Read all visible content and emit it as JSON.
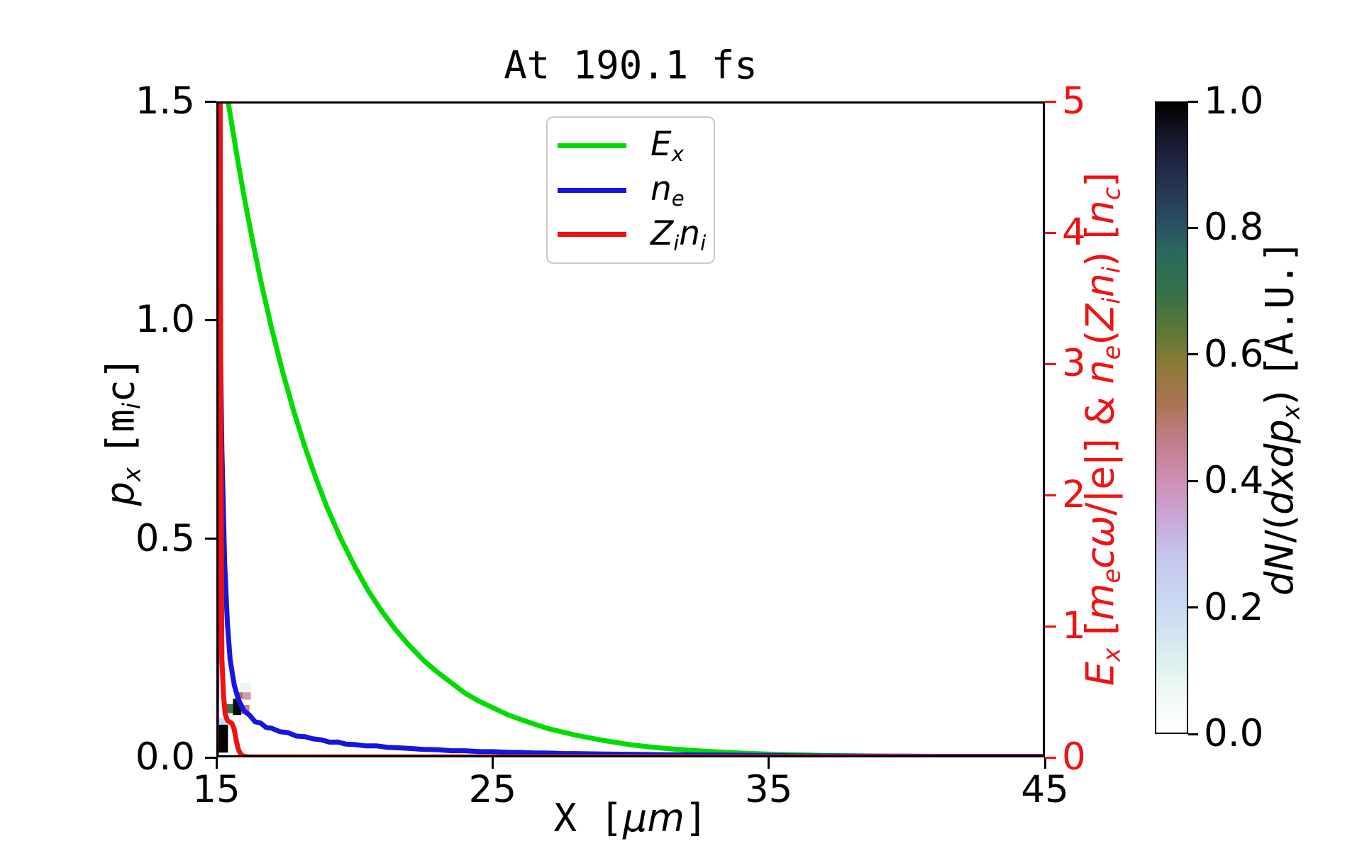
{
  "figure": {
    "kind": "simulation-diagnostic-plot"
  },
  "chart_data": {
    "type": "line+heatmap",
    "title": "At 190.1 fs",
    "xlabel": [
      {
        "t": "X [",
        "mono": 1
      },
      {
        "t": "μm",
        "it": 1
      },
      {
        "t": "]",
        "mono": 1
      }
    ],
    "x_range": [
      15,
      45
    ],
    "x_ticks": [
      "15",
      "25",
      "35",
      "45"
    ],
    "left_axis": {
      "label": [
        {
          "t": "p",
          "it": 1
        },
        {
          "t": "x",
          "sub": 1
        },
        {
          "t": " "
        },
        {
          "t": "[m",
          "mono": 1
        },
        {
          "t": "i",
          "sub": 1
        },
        {
          "t": "c]",
          "mono": 1
        }
      ],
      "range": [
        0,
        1.5
      ],
      "ticks": [
        "0.0",
        "0.5",
        "1.0",
        "1.5"
      ],
      "color": "#000000"
    },
    "right_axis": {
      "label": [
        {
          "t": "E",
          "it": 1
        },
        {
          "t": "x",
          "sub": 1
        },
        {
          "t": " ["
        },
        {
          "t": "m",
          "it": 1
        },
        {
          "t": "e",
          "sub": 1
        },
        {
          "t": "cω",
          "it": 1
        },
        {
          "t": "/|e|] & "
        },
        {
          "t": "n",
          "it": 1
        },
        {
          "t": "e",
          "sub": 1
        },
        {
          "t": "(",
          "it": 0
        },
        {
          "t": "Z",
          "it": 1
        },
        {
          "t": "i",
          "sub": 1
        },
        {
          "t": "n",
          "it": 1
        },
        {
          "t": "i",
          "sub": 1
        },
        {
          "t": ") ["
        },
        {
          "t": "n",
          "it": 1
        },
        {
          "t": "c",
          "sub": 1
        },
        {
          "t": "]"
        }
      ],
      "range": [
        0,
        5
      ],
      "ticks": [
        "0",
        "1",
        "2",
        "3",
        "4",
        "5"
      ],
      "color": "#f01212"
    },
    "legend_position": "upper center",
    "series": [
      {
        "name": "E_x",
        "axis": "right",
        "color": "#00dc00",
        "legend": [
          {
            "t": "E",
            "it": 1
          },
          {
            "t": "x",
            "sub": 1
          }
        ],
        "x": [
          15.0,
          15.2,
          15.4,
          15.6,
          15.8,
          16.0,
          16.3,
          16.6,
          17.0,
          17.4,
          17.8,
          18.2,
          18.6,
          19.0,
          19.5,
          20.0,
          20.5,
          21.0,
          21.5,
          22.0,
          22.5,
          23.0,
          23.5,
          24.0,
          24.5,
          25.0,
          25.5,
          26.0,
          27.0,
          28.0,
          29.0,
          30.0,
          31.0,
          32.0,
          33.0,
          34.0,
          35.0,
          37.0,
          39.0,
          41.0,
          43.0,
          45.0
        ],
        "y": [
          5.6,
          5.31,
          5.03,
          4.77,
          4.52,
          4.28,
          3.95,
          3.64,
          3.27,
          2.94,
          2.64,
          2.37,
          2.13,
          1.91,
          1.67,
          1.46,
          1.27,
          1.11,
          0.97,
          0.85,
          0.74,
          0.65,
          0.57,
          0.49,
          0.43,
          0.38,
          0.33,
          0.29,
          0.22,
          0.17,
          0.13,
          0.096,
          0.073,
          0.056,
          0.043,
          0.033,
          0.025,
          0.015,
          0.009,
          0.005,
          0.003,
          0.002
        ]
      },
      {
        "name": "n_e",
        "axis": "right",
        "color": "#1616dc",
        "legend": [
          {
            "t": "n",
            "it": 1
          },
          {
            "t": "e",
            "sub": 1
          }
        ],
        "x": [
          15.0,
          15.03,
          15.06,
          15.1,
          15.15,
          15.2,
          15.3,
          15.4,
          15.5,
          15.65,
          15.8,
          16.0,
          16.2,
          16.4,
          16.6,
          16.8,
          17.0,
          17.3,
          17.6,
          17.9,
          18.2,
          18.5,
          18.8,
          19.1,
          19.4,
          19.7,
          20.0,
          20.4,
          20.8,
          21.2,
          21.6,
          22.0,
          22.5,
          23.0,
          23.5,
          24.0,
          24.5,
          25.0,
          25.5,
          26.0,
          26.5,
          27.0,
          27.5,
          28.0,
          29.0,
          30.0,
          31.0,
          32.0,
          33.0,
          34.0,
          35.0,
          36.0,
          37.0,
          38.0,
          39.0,
          40.0,
          41.0,
          42.0,
          43.0,
          44.0,
          45.0
        ],
        "y": [
          0.0,
          1.2,
          2.9,
          3.5,
          3.1,
          2.35,
          1.48,
          1.02,
          0.74,
          0.55,
          0.44,
          0.355,
          0.322,
          0.272,
          0.262,
          0.228,
          0.222,
          0.196,
          0.188,
          0.162,
          0.158,
          0.141,
          0.134,
          0.116,
          0.117,
          0.101,
          0.098,
          0.088,
          0.088,
          0.076,
          0.073,
          0.068,
          0.061,
          0.059,
          0.051,
          0.051,
          0.045,
          0.044,
          0.039,
          0.038,
          0.034,
          0.033,
          0.03,
          0.029,
          0.026,
          0.024,
          0.021,
          0.019,
          0.018,
          0.016,
          0.014,
          0.012,
          0.011,
          0.01,
          0.009,
          0.009,
          0.008,
          0.008,
          0.008,
          0.008,
          0.008
        ]
      },
      {
        "name": "Z_i n_i",
        "axis": "right",
        "color": "#f01212",
        "legend": [
          {
            "t": "Z",
            "it": 1
          },
          {
            "t": "i",
            "sub": 1
          },
          {
            "t": "n",
            "it": 1
          },
          {
            "t": "i",
            "sub": 1
          }
        ],
        "x": [
          15.0,
          15.04,
          15.07,
          15.1,
          15.13,
          15.16,
          15.2,
          15.26,
          15.32,
          15.4,
          15.48,
          15.56,
          15.64,
          15.72,
          15.8,
          15.88,
          15.96,
          16.05,
          16.15,
          16.3,
          16.6,
          17.0,
          18.0,
          20.0,
          25.0,
          30.0,
          35.0,
          40.0,
          45.0
        ],
        "y": [
          0.02,
          5.9,
          5.9,
          5.9,
          5.9,
          2.6,
          0.75,
          0.47,
          0.33,
          0.28,
          0.27,
          0.26,
          0.22,
          0.13,
          0.06,
          0.025,
          0.012,
          0.007,
          0.005,
          0.004,
          0.004,
          0.004,
          0.004,
          0.004,
          0.004,
          0.004,
          0.004,
          0.004,
          0.004
        ]
      }
    ],
    "heatmap": {
      "quantity": "dN/(dxdp_x)",
      "cells": [
        {
          "x": [
            15.05,
            15.42
          ],
          "p": [
            0.011,
            0.075
          ],
          "value": 1.0,
          "color": "#000000"
        },
        {
          "x": [
            15.05,
            15.3
          ],
          "p": [
            0.075,
            0.091
          ],
          "value": 0.18,
          "color": "#c8def2"
        },
        {
          "x": [
            15.3,
            15.6
          ],
          "p": [
            0.101,
            0.122
          ],
          "value": 0.68,
          "color": "#3f7046"
        },
        {
          "x": [
            15.6,
            15.9
          ],
          "p": [
            0.097,
            0.134
          ],
          "value": 0.97,
          "color": "#0a0a0a"
        },
        {
          "x": [
            15.9,
            16.2
          ],
          "p": [
            0.099,
            0.12
          ],
          "value": 0.42,
          "color": "#c88193"
        },
        {
          "x": [
            15.75,
            15.95
          ],
          "p": [
            0.134,
            0.149
          ],
          "value": 0.5,
          "color": "#a77a4e"
        },
        {
          "x": [
            15.95,
            16.25
          ],
          "p": [
            0.132,
            0.149
          ],
          "value": 0.38,
          "color": "#d898b6"
        },
        {
          "x": [
            15.85,
            16.25
          ],
          "p": [
            0.149,
            0.17
          ],
          "value": 0.05,
          "color": "#ecf7f1"
        }
      ]
    },
    "colorbar": {
      "label": [
        {
          "t": "dN",
          "it": 1
        },
        {
          "t": "/(",
          "it": 0
        },
        {
          "t": "dxdp",
          "it": 1
        },
        {
          "t": "x",
          "sub": 1
        },
        {
          "t": ")"
        },
        {
          "t": " "
        },
        {
          "t": "[A.U.]",
          "mono": 1
        }
      ],
      "range": [
        0.0,
        1.0
      ],
      "ticks": [
        "0.0",
        "0.2",
        "0.4",
        "0.6",
        "0.8",
        "1.0"
      ],
      "gradient": [
        {
          "pos": 0.0,
          "color": "#ffffff"
        },
        {
          "pos": 0.06,
          "color": "#f0faf4"
        },
        {
          "pos": 0.13,
          "color": "#d8ecf0"
        },
        {
          "pos": 0.2,
          "color": "#c9daf2"
        },
        {
          "pos": 0.28,
          "color": "#c6c6ee"
        },
        {
          "pos": 0.33,
          "color": "#c9abdd"
        },
        {
          "pos": 0.4,
          "color": "#cf8fb5"
        },
        {
          "pos": 0.46,
          "color": "#c07f8d"
        },
        {
          "pos": 0.52,
          "color": "#ab7454"
        },
        {
          "pos": 0.58,
          "color": "#8f7a39"
        },
        {
          "pos": 0.64,
          "color": "#5c7836"
        },
        {
          "pos": 0.7,
          "color": "#35704a"
        },
        {
          "pos": 0.76,
          "color": "#2a6a5e"
        },
        {
          "pos": 0.82,
          "color": "#294a60"
        },
        {
          "pos": 0.88,
          "color": "#252f4e"
        },
        {
          "pos": 0.94,
          "color": "#181930"
        },
        {
          "pos": 1.0,
          "color": "#000000"
        }
      ]
    }
  }
}
